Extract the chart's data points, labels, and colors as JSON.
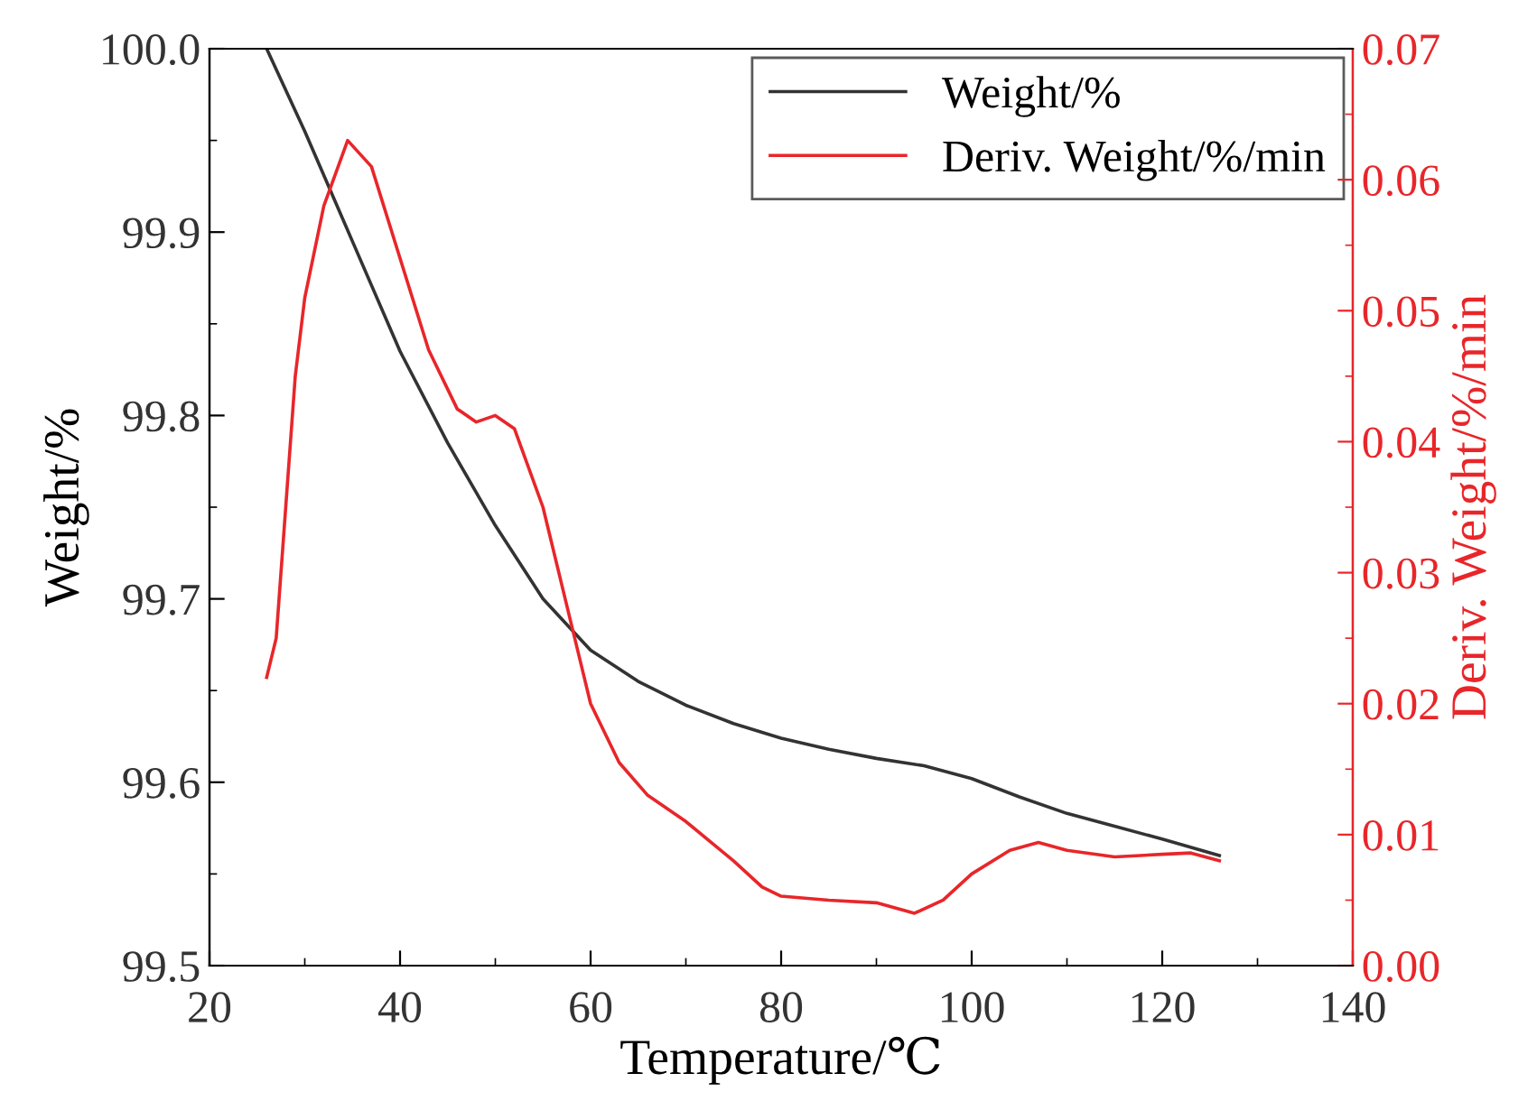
{
  "chart_data": {
    "type": "line",
    "xlabel": "Temperature/℃",
    "ylabel": "Weight/%",
    "y2label": "Deriv. Weight/%/min",
    "xlim": [
      20,
      140
    ],
    "xticks": [
      20,
      40,
      60,
      80,
      100,
      120,
      140
    ],
    "ylim": [
      99.5,
      100.0
    ],
    "yticks": [
      {
        "value": 99.5,
        "label": "99.5"
      },
      {
        "value": 99.6,
        "label": "99.6"
      },
      {
        "value": 99.7,
        "label": "99.7"
      },
      {
        "value": 99.8,
        "label": "99.8"
      },
      {
        "value": 99.9,
        "label": "99.9"
      },
      {
        "value": 100.0,
        "label": "100.0"
      }
    ],
    "y2lim": [
      0,
      0.07
    ],
    "y2ticks": [
      {
        "value": 0,
        "label": "0.00"
      },
      {
        "value": 0.01,
        "label": "0.01"
      },
      {
        "value": 0.02,
        "label": "0.02"
      },
      {
        "value": 0.03,
        "label": "0.03"
      },
      {
        "value": 0.04,
        "label": "0.04"
      },
      {
        "value": 0.05,
        "label": "0.05"
      },
      {
        "value": 0.06,
        "label": "0.06"
      },
      {
        "value": 0.07,
        "label": "0.07"
      }
    ],
    "legend": "top right",
    "grid": false,
    "series": [
      {
        "name": "Weight/%",
        "color": "#333333",
        "x": [
          26,
          30,
          35,
          40,
          45,
          50,
          55,
          60,
          65,
          70,
          75,
          80,
          85,
          90,
          95,
          100,
          105,
          110,
          115,
          120,
          126
        ],
        "values": [
          100.0,
          99.955,
          99.895,
          99.835,
          99.785,
          99.74,
          99.7,
          99.672,
          99.655,
          99.642,
          99.632,
          99.624,
          99.618,
          99.613,
          99.609,
          99.602,
          99.592,
          99.583,
          99.576,
          99.569,
          99.56
        ]
      },
      {
        "name": "Deriv. Weight/%/min",
        "color": "#e8262a",
        "axis": "y2",
        "x": [
          26,
          27,
          28,
          29,
          30,
          32,
          34.5,
          37,
          40,
          43,
          46,
          48,
          50,
          52,
          55,
          58,
          60,
          63,
          66,
          70,
          75,
          78,
          80,
          85,
          90,
          94,
          97,
          100,
          104,
          107,
          110,
          115,
          120,
          123,
          126
        ],
        "values": [
          0.022,
          0.025,
          0.035,
          0.045,
          0.051,
          0.058,
          0.063,
          0.061,
          0.054,
          0.047,
          0.0425,
          0.0415,
          0.042,
          0.041,
          0.035,
          0.026,
          0.02,
          0.0155,
          0.013,
          0.011,
          0.008,
          0.006,
          0.0053,
          0.005,
          0.0048,
          0.004,
          0.005,
          0.007,
          0.0088,
          0.0094,
          0.0088,
          0.0083,
          0.0085,
          0.0086,
          0.008
        ]
      }
    ]
  }
}
